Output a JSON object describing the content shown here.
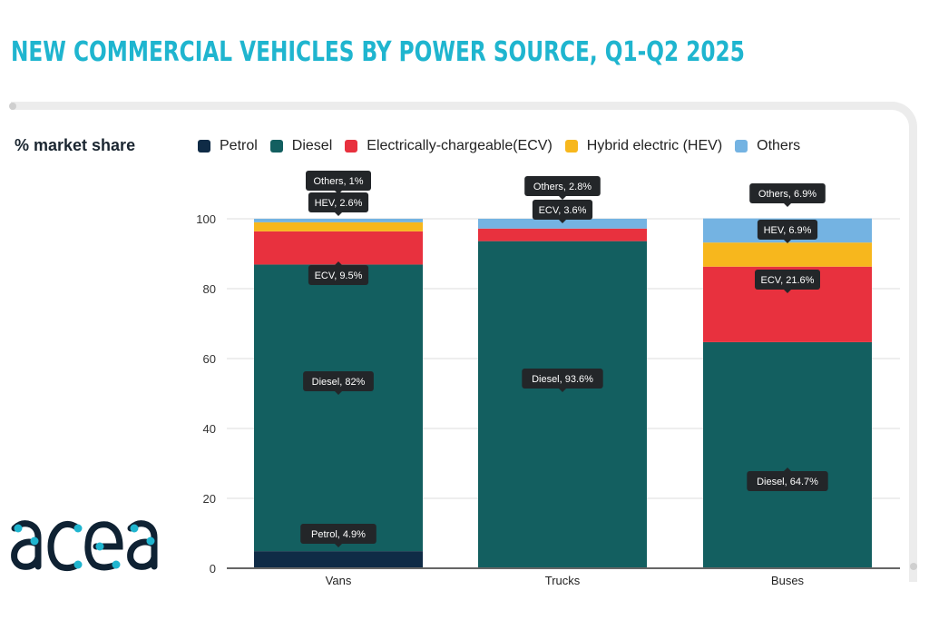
{
  "title": "NEW COMMERCIAL VEHICLES BY POWER SOURCE, Q1-Q2 2025",
  "logo_text": "acea",
  "chart_data": {
    "type": "bar",
    "stacked": true,
    "title": "NEW COMMERCIAL VEHICLES BY POWER SOURCE, Q1-Q2 2025",
    "xlabel": "",
    "ylabel": "% market share",
    "ylim": [
      0,
      100
    ],
    "yticks": [
      0,
      20,
      40,
      60,
      80,
      100
    ],
    "grid": true,
    "legend_position": "top",
    "categories": [
      "Vans",
      "Trucks",
      "Buses"
    ],
    "series": [
      {
        "name": "Petrol",
        "short": "Petrol",
        "color": "#0f2b46",
        "values": [
          4.9,
          0,
          0
        ]
      },
      {
        "name": "Diesel",
        "short": "Diesel",
        "color": "#135f60",
        "values": [
          82,
          93.6,
          64.7
        ]
      },
      {
        "name": "Electrically-chargeable(ECV)",
        "short": "ECV",
        "color": "#e8313e",
        "values": [
          9.5,
          3.6,
          21.6
        ]
      },
      {
        "name": "Hybrid electric (HEV)",
        "short": "HEV",
        "color": "#f7b71d",
        "values": [
          2.6,
          0,
          6.9
        ]
      },
      {
        "name": "Others",
        "short": "Others",
        "color": "#74b3e2",
        "values": [
          1,
          2.8,
          6.9
        ]
      }
    ],
    "data_labels": [
      {
        "category": "Vans",
        "text": "Others, 1%"
      },
      {
        "category": "Vans",
        "text": "HEV, 2.6%"
      },
      {
        "category": "Vans",
        "text": "ECV, 9.5%"
      },
      {
        "category": "Vans",
        "text": "Diesel, 82%"
      },
      {
        "category": "Vans",
        "text": "Petrol, 4.9%"
      },
      {
        "category": "Trucks",
        "text": "Others, 2.8%"
      },
      {
        "category": "Trucks",
        "text": "ECV, 3.6%"
      },
      {
        "category": "Trucks",
        "text": "Diesel, 93.6%"
      },
      {
        "category": "Buses",
        "text": "Others, 6.9%"
      },
      {
        "category": "Buses",
        "text": "HEV, 6.9%"
      },
      {
        "category": "Buses",
        "text": "ECV, 21.6%"
      },
      {
        "category": "Buses",
        "text": "Diesel, 64.7%"
      }
    ]
  },
  "colors": {
    "title": "#1fb5cf",
    "tooltip_bg": "#232629",
    "logo_dark": "#0f2233",
    "logo_accent": "#1fb5cf"
  }
}
